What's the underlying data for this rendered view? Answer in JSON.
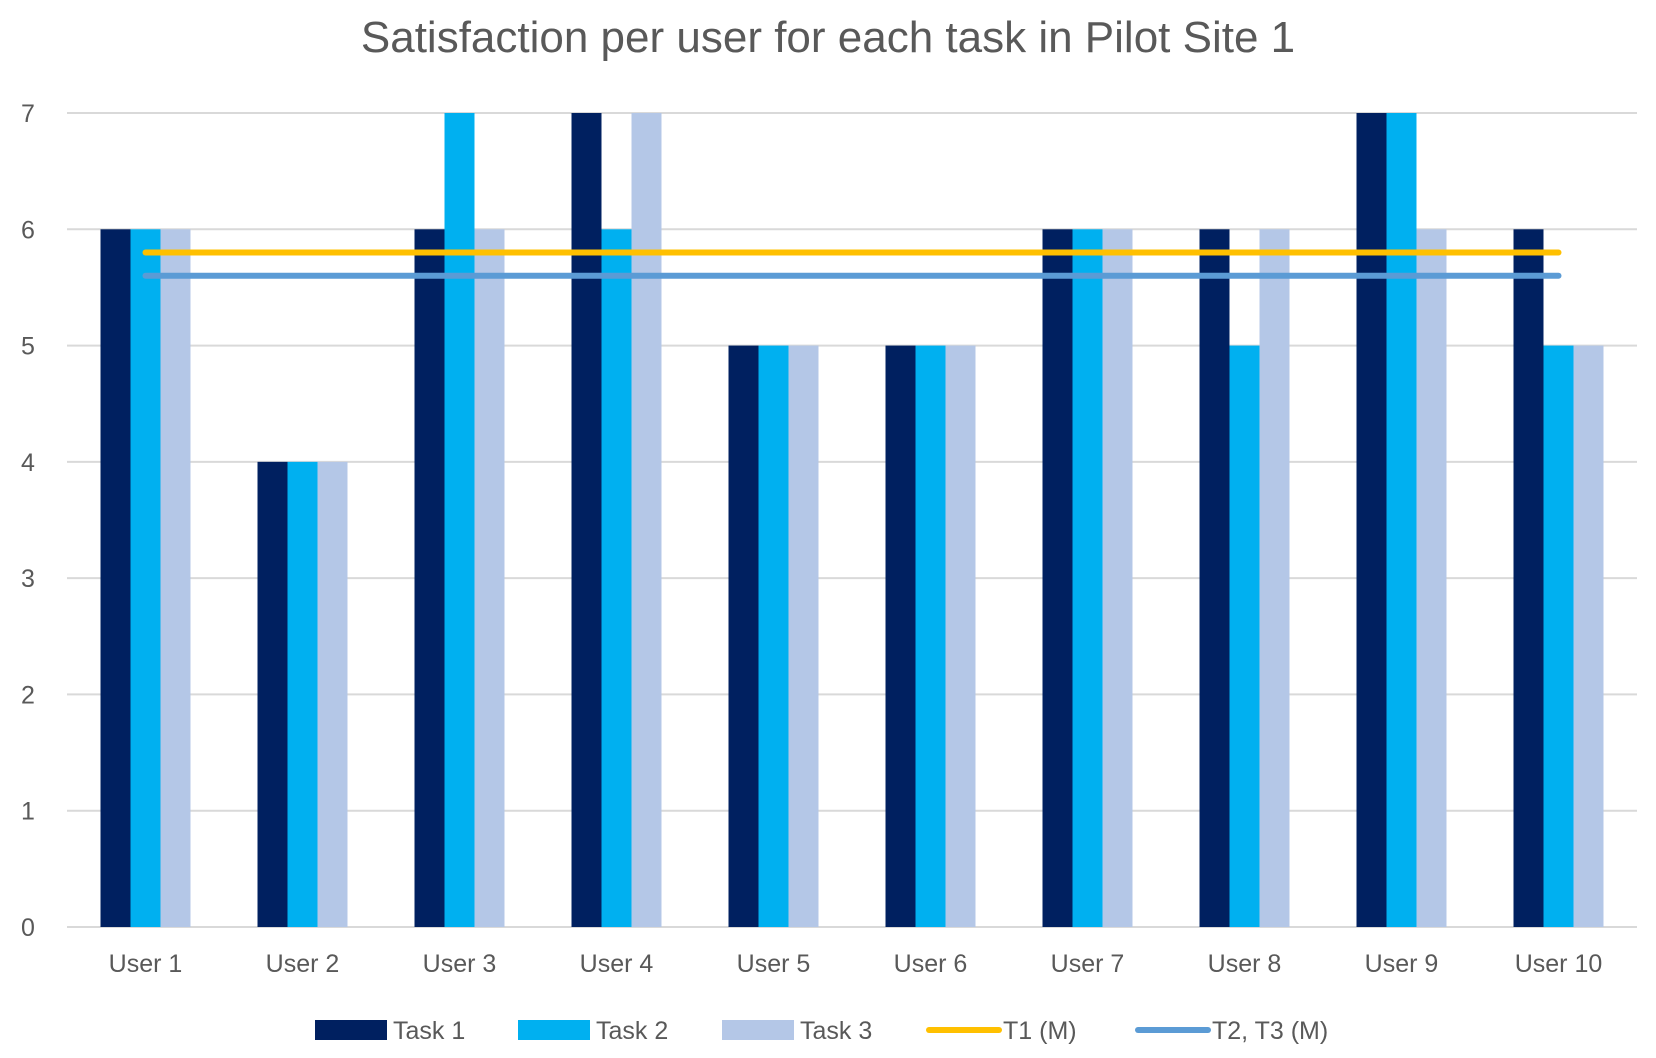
{
  "chart_data": {
    "type": "bar",
    "title": "Satisfaction per user for each task in Pilot Site 1",
    "xlabel": "",
    "ylabel": "",
    "ylim": [
      0,
      7
    ],
    "yticks": [
      0,
      1,
      2,
      3,
      4,
      5,
      6,
      7
    ],
    "grid": true,
    "legend_position": "bottom",
    "categories": [
      "User 1",
      "User 2",
      "User 3",
      "User 4",
      "User 5",
      "User 6",
      "User 7",
      "User 8",
      "User 9",
      "User 10"
    ],
    "series": [
      {
        "name": "Task 1",
        "color": "#002060",
        "values": [
          6,
          4,
          6,
          7,
          5,
          5,
          6,
          6,
          7,
          6
        ]
      },
      {
        "name": "Task 2",
        "color": "#00B0F0",
        "values": [
          6,
          4,
          7,
          6,
          5,
          5,
          6,
          5,
          7,
          5
        ]
      },
      {
        "name": "Task 3",
        "color": "#B4C7E7",
        "values": [
          6,
          4,
          6,
          7,
          5,
          5,
          6,
          6,
          6,
          5
        ]
      }
    ],
    "reference_lines": [
      {
        "name": "T1 (M)",
        "color": "#FFC000",
        "value": 5.8
      },
      {
        "name": "T2, T3 (M)",
        "color": "#5B9BD5",
        "value": 5.6
      }
    ]
  }
}
